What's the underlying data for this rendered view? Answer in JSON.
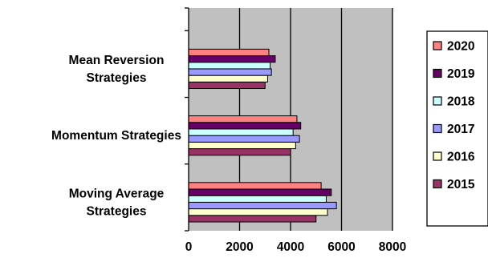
{
  "chart_data": {
    "type": "bar",
    "orientation": "horizontal",
    "categories": [
      "Moving Average Strategies",
      "Momentum Strategies",
      "Mean Reversion Strategies"
    ],
    "category_lines": [
      [
        "Moving Average",
        "Strategies"
      ],
      [
        "Momentum Strategies"
      ],
      [
        "Mean Reversion",
        "Strategies"
      ]
    ],
    "series": [
      {
        "name": "2015",
        "color": "#993366",
        "values": [
          5000,
          4000,
          3000
        ]
      },
      {
        "name": "2016",
        "color": "#FFFFCC",
        "values": [
          5450,
          4200,
          3100
        ]
      },
      {
        "name": "2017",
        "color": "#9999FF",
        "values": [
          5800,
          4350,
          3250
        ]
      },
      {
        "name": "2018",
        "color": "#CCFFFF",
        "values": [
          5400,
          4100,
          3200
        ]
      },
      {
        "name": "2019",
        "color": "#660066",
        "values": [
          5600,
          4400,
          3400
        ]
      },
      {
        "name": "2020",
        "color": "#FF8080",
        "values": [
          5200,
          4250,
          3150
        ]
      }
    ],
    "x_ticks": [
      "0",
      "2000",
      "4000",
      "6000",
      "8000"
    ],
    "xlim": [
      0,
      8000
    ],
    "plot_background": "#C0C0C0",
    "grid": "vertical major gridlines",
    "legend_position": "right",
    "title": "",
    "xlabel": "",
    "ylabel": ""
  }
}
